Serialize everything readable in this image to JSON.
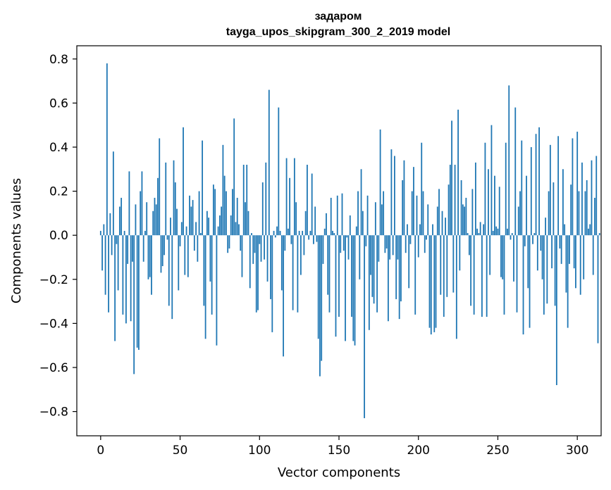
{
  "chart_data": {
    "type": "bar",
    "title": "задаром",
    "subtitle": "tayga_upos_skipgram_300_2_2019 model",
    "xlabel": "Vector components",
    "ylabel": "Components values",
    "xlim": [
      -15,
      315
    ],
    "ylim": [
      -0.91,
      0.86
    ],
    "xticks": [
      0,
      50,
      100,
      150,
      200,
      250,
      300
    ],
    "yticks": [
      -0.8,
      -0.6,
      -0.4,
      -0.2,
      0.0,
      0.2,
      0.4,
      0.6,
      0.8
    ],
    "xtick_labels": [
      "0",
      "50",
      "100",
      "150",
      "200",
      "250",
      "300"
    ],
    "ytick_labels": [
      "−0.8",
      "−0.6",
      "−0.4",
      "−0.2",
      "0.0",
      "0.2",
      "0.4",
      "0.6",
      "0.8"
    ],
    "bar_color": "#1f77b4",
    "grid": false,
    "values": [
      0.02,
      -0.16,
      0.05,
      -0.27,
      0.78,
      -0.35,
      0.1,
      -0.09,
      0.38,
      -0.48,
      -0.04,
      -0.25,
      0.13,
      0.17,
      -0.36,
      0.02,
      -0.4,
      -0.13,
      0.29,
      -0.39,
      -0.12,
      -0.63,
      0.14,
      -0.51,
      -0.52,
      0.2,
      0.29,
      -0.12,
      0.02,
      0.15,
      -0.2,
      -0.19,
      -0.27,
      0.11,
      0.17,
      0.14,
      0.26,
      0.44,
      -0.17,
      -0.14,
      -0.09,
      0.33,
      -0.02,
      -0.32,
      0.08,
      -0.38,
      0.34,
      0.24,
      0.12,
      -0.25,
      -0.05,
      0.06,
      0.49,
      -0.18,
      0.04,
      -0.19,
      0.18,
      0.13,
      0.16,
      -0.07,
      0.06,
      -0.12,
      0.2,
      0.01,
      0.43,
      -0.32,
      -0.47,
      0.11,
      0.08,
      -0.21,
      -0.36,
      0.23,
      0.21,
      -0.5,
      0.04,
      0.09,
      0.13,
      0.41,
      0.27,
      0.2,
      -0.08,
      -0.06,
      0.09,
      0.21,
      0.53,
      0.06,
      0.17,
      0.05,
      -0.07,
      -0.19,
      0.32,
      0.15,
      0.32,
      0.11,
      -0.24,
      0.01,
      -0.13,
      -0.08,
      -0.35,
      -0.34,
      -0.04,
      -0.12,
      0.24,
      -0.11,
      0.33,
      -0.21,
      0.66,
      -0.29,
      -0.44,
      0.02,
      -0.01,
      0.04,
      0.58,
      0.02,
      -0.25,
      -0.55,
      -0.07,
      0.35,
      0.03,
      0.26,
      -0.04,
      -0.34,
      0.35,
      0.15,
      -0.35,
      0.02,
      -0.18,
      0.02,
      -0.09,
      0.11,
      0.32,
      -0.02,
      0.02,
      0.28,
      -0.04,
      0.13,
      -0.03,
      -0.47,
      -0.64,
      -0.57,
      -0.13,
      0.03,
      0.1,
      -0.27,
      -0.35,
      0.17,
      0.02,
      0.01,
      -0.46,
      0.18,
      -0.37,
      -0.08,
      0.19,
      -0.07,
      -0.48,
      -0.01,
      -0.11,
      0.09,
      -0.37,
      -0.48,
      -0.5,
      0.04,
      0.2,
      -0.2,
      0.3,
      0.11,
      -0.83,
      -0.05,
      0.18,
      -0.43,
      -0.18,
      -0.28,
      -0.31,
      0.15,
      -0.35,
      -0.12,
      0.48,
      0.14,
      0.2,
      -0.08,
      -0.06,
      -0.39,
      -0.11,
      0.39,
      -0.09,
      0.36,
      -0.29,
      -0.11,
      -0.38,
      -0.3,
      0.25,
      0.34,
      -0.08,
      0.05,
      -0.24,
      -0.04,
      0.2,
      0.31,
      -0.36,
      0.18,
      -0.1,
      0.05,
      0.42,
      0.2,
      -0.08,
      -0.02,
      0.14,
      -0.42,
      -0.45,
      0.05,
      -0.44,
      -0.42,
      0.13,
      0.21,
      -0.27,
      0.11,
      -0.37,
      0.08,
      -0.28,
      0.23,
      0.32,
      0.52,
      -0.26,
      0.32,
      -0.47,
      0.57,
      -0.16,
      0.25,
      0.14,
      0.13,
      0.17,
      0.01,
      -0.09,
      -0.32,
      0.21,
      -0.36,
      0.33,
      0.03,
      0.01,
      0.06,
      -0.37,
      0.05,
      0.42,
      -0.37,
      0.3,
      -0.18,
      0.5,
      0.02,
      0.27,
      0.04,
      0.03,
      0.22,
      -0.19,
      -0.2,
      -0.36,
      0.42,
      0.03,
      0.68,
      -0.02,
      0.01,
      -0.21,
      0.58,
      -0.35,
      0.13,
      0.2,
      0.43,
      -0.45,
      -0.05,
      0.27,
      -0.24,
      -0.42,
      0.4,
      -0.04,
      0.01,
      0.46,
      -0.16,
      0.49,
      -0.07,
      -0.2,
      -0.36,
      0.08,
      -0.31,
      0.2,
      0.41,
      -0.15,
      0.24,
      -0.32,
      -0.68,
      0.45,
      -0.06,
      -0.13,
      0.3,
      0.05,
      -0.26,
      -0.42,
      -0.13,
      0.23,
      0.44,
      -0.15,
      -0.24,
      0.47,
      0.2,
      -0.27,
      0.33,
      -0.2,
      0.2,
      0.25,
      0.03,
      0.05,
      0.34,
      -0.18,
      0.17,
      0.36,
      -0.49,
      0.01
    ]
  }
}
